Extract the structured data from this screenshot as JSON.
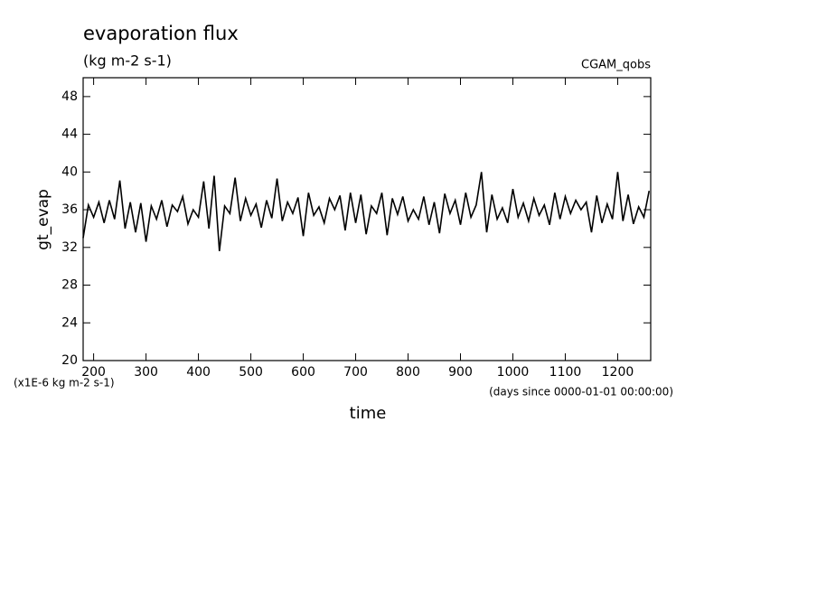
{
  "chart_data": {
    "type": "line",
    "title": "evaporation flux",
    "subtitle": "(kg m-2 s-1)",
    "dataset_label": "CGAM_qobs",
    "y_label": "gt_evap",
    "x_label": "time",
    "y_units_label": "(x1E-6 kg m-2 s-1)",
    "x_units_label": "(days since 0000-01-01 00:00:00)",
    "x": [
      180,
      190,
      200,
      210,
      220,
      230,
      240,
      250,
      260,
      270,
      280,
      290,
      300,
      310,
      320,
      330,
      340,
      350,
      360,
      370,
      380,
      390,
      400,
      410,
      420,
      430,
      440,
      450,
      460,
      470,
      480,
      490,
      500,
      510,
      520,
      530,
      540,
      550,
      560,
      570,
      580,
      590,
      600,
      610,
      620,
      630,
      640,
      650,
      660,
      670,
      680,
      690,
      700,
      710,
      720,
      730,
      740,
      750,
      760,
      770,
      780,
      790,
      800,
      810,
      820,
      830,
      840,
      850,
      860,
      870,
      880,
      890,
      900,
      910,
      920,
      930,
      940,
      950,
      960,
      970,
      980,
      990,
      1000,
      1010,
      1020,
      1030,
      1040,
      1050,
      1060,
      1070,
      1080,
      1090,
      1100,
      1110,
      1120,
      1130,
      1140,
      1150,
      1160,
      1170,
      1180,
      1190,
      1200,
      1210,
      1220,
      1230,
      1240,
      1250,
      1260
    ],
    "series": [
      {
        "name": "gt_evap",
        "color": "#000000",
        "values": [
          33.0,
          36.5,
          35.2,
          36.8,
          34.6,
          37.0,
          35.0,
          39.1,
          34.0,
          36.8,
          33.6,
          36.7,
          32.6,
          36.4,
          35.0,
          37.0,
          34.2,
          36.5,
          35.8,
          37.4,
          34.5,
          36.0,
          35.2,
          39.0,
          34.0,
          39.6,
          31.6,
          36.4,
          35.6,
          39.4,
          34.8,
          37.2,
          35.4,
          36.6,
          34.1,
          37.0,
          35.1,
          39.3,
          34.8,
          36.8,
          35.6,
          37.3,
          33.2,
          37.8,
          35.4,
          36.3,
          34.6,
          37.2,
          36.0,
          37.5,
          33.8,
          37.8,
          34.6,
          37.6,
          33.4,
          36.4,
          35.6,
          37.8,
          33.3,
          37.2,
          35.5,
          37.4,
          34.8,
          36.0,
          35.0,
          37.4,
          34.4,
          36.8,
          33.5,
          37.7,
          35.6,
          37.0,
          34.4,
          37.8,
          35.2,
          36.5,
          40.0,
          33.6,
          37.6,
          35.0,
          36.2,
          34.6,
          38.2,
          35.2,
          36.7,
          34.8,
          37.2,
          35.4,
          36.5,
          34.4,
          37.8,
          35.0,
          37.4,
          35.6,
          37.0,
          36.0,
          36.8,
          33.6,
          37.5,
          34.6,
          36.6,
          35.0,
          40.0,
          34.8,
          37.6,
          34.5,
          36.3,
          35.2,
          38.0
        ]
      }
    ],
    "xlim": [
      180,
      1263
    ],
    "ylim": [
      20,
      50
    ],
    "xticks": [
      200,
      300,
      400,
      500,
      600,
      700,
      800,
      900,
      1000,
      1100,
      1200
    ],
    "yticks": [
      20,
      24,
      28,
      32,
      36,
      40,
      44,
      48
    ]
  }
}
